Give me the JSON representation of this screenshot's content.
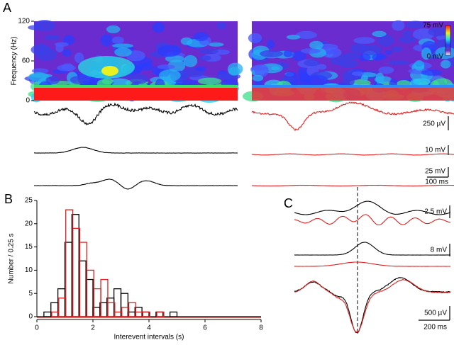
{
  "figure": {
    "panel_labels": [
      "A",
      "B",
      "C"
    ]
  },
  "chart_data": [
    {
      "type": "spectrogram",
      "y_label": "Frequency (Hz)",
      "ylim": [
        0,
        120
      ],
      "yticks": [
        0,
        60,
        120
      ],
      "colorbar_labels": [
        "75 mV",
        "0 mV"
      ],
      "scale_bar_labels": [
        "250 µV",
        "10 mV",
        "25 mV",
        "100 ms"
      ]
    },
    {
      "type": "histogram",
      "x_label": "Interevent intervals (s)",
      "y_label": "Number / 0.25 s",
      "bins": [
        0,
        0.25,
        0.5,
        0.75,
        1,
        1.25,
        1.5,
        1.75,
        2,
        2.25,
        2.5,
        2.75,
        3,
        3.25,
        3.5,
        3.75,
        4,
        4.25,
        4.5,
        4.75,
        5,
        5.25,
        5.5,
        5.75,
        6,
        6.25,
        6.5,
        6.75,
        7,
        7.25,
        7.5,
        7.75,
        8
      ],
      "series": [
        {
          "color": "#000000",
          "values": [
            0,
            1,
            3,
            6,
            16,
            22,
            12,
            8,
            2,
            3,
            4,
            6,
            5,
            1,
            2,
            1,
            0,
            1,
            0,
            1,
            0,
            0,
            0,
            0,
            0,
            0,
            0,
            0,
            0,
            0,
            0,
            0
          ]
        },
        {
          "color": "#e02020",
          "values": [
            0,
            0,
            1,
            4,
            23,
            19,
            16,
            10,
            6,
            8,
            3,
            1,
            2,
            3,
            1,
            1,
            0,
            1,
            0,
            0,
            0,
            0,
            0,
            0,
            0,
            0,
            0,
            0,
            0,
            0,
            0,
            0
          ]
        }
      ],
      "xlim": [
        0,
        8
      ],
      "xticks": [
        0,
        2,
        4,
        6,
        8
      ],
      "ylim": [
        0,
        25
      ],
      "yticks": [
        0,
        5,
        10,
        15,
        20,
        25
      ]
    },
    {
      "type": "traces",
      "scale_bar_labels": [
        "2.5 mV",
        "8 mV",
        "500 µV",
        "200 ms"
      ]
    }
  ]
}
